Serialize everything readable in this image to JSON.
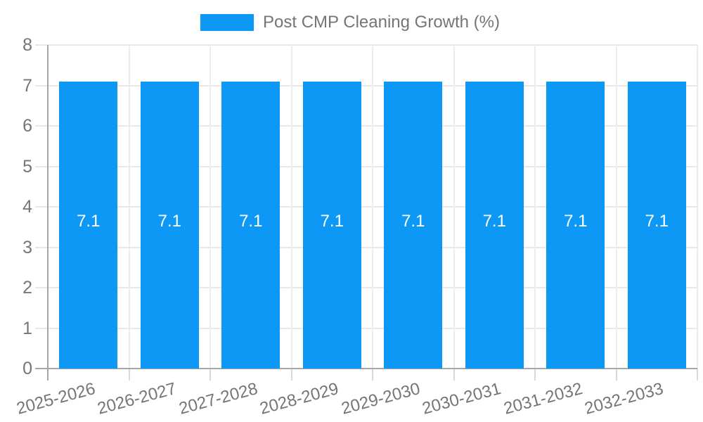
{
  "legend": {
    "label": "Post CMP Cleaning Growth (%)"
  },
  "colors": {
    "bar": "#0d98f5",
    "axis_text": "#757575",
    "value_label": "#ffffff",
    "grid_line": "#e8e8e8",
    "boundary_line": "#ededed",
    "tick_line": "#d9d9d9",
    "axis_line": "#a6a6a6",
    "background": "#ffffff"
  },
  "chart_data": {
    "type": "bar",
    "title": "",
    "categories": [
      "2025-2026",
      "2026-2027",
      "2027-2028",
      "2028-2029",
      "2029-2030",
      "2030-2031",
      "2031-2032",
      "2032-2033"
    ],
    "series": [
      {
        "name": "Post CMP Cleaning Growth (%)",
        "values": [
          7.1,
          7.1,
          7.1,
          7.1,
          7.1,
          7.1,
          7.1,
          7.1
        ]
      }
    ],
    "bar_labels": [
      "7.1",
      "7.1",
      "7.1",
      "7.1",
      "7.1",
      "7.1",
      "7.1",
      "7.1"
    ],
    "xlabel": "",
    "ylabel": "",
    "ylim": [
      0,
      8
    ],
    "yticks": [
      0,
      1,
      2,
      3,
      4,
      5,
      6,
      7,
      8
    ],
    "grid": true,
    "legend_position": "top-center",
    "value_labels_inside_bars": true,
    "x_tick_label_rotation_deg": -15
  }
}
